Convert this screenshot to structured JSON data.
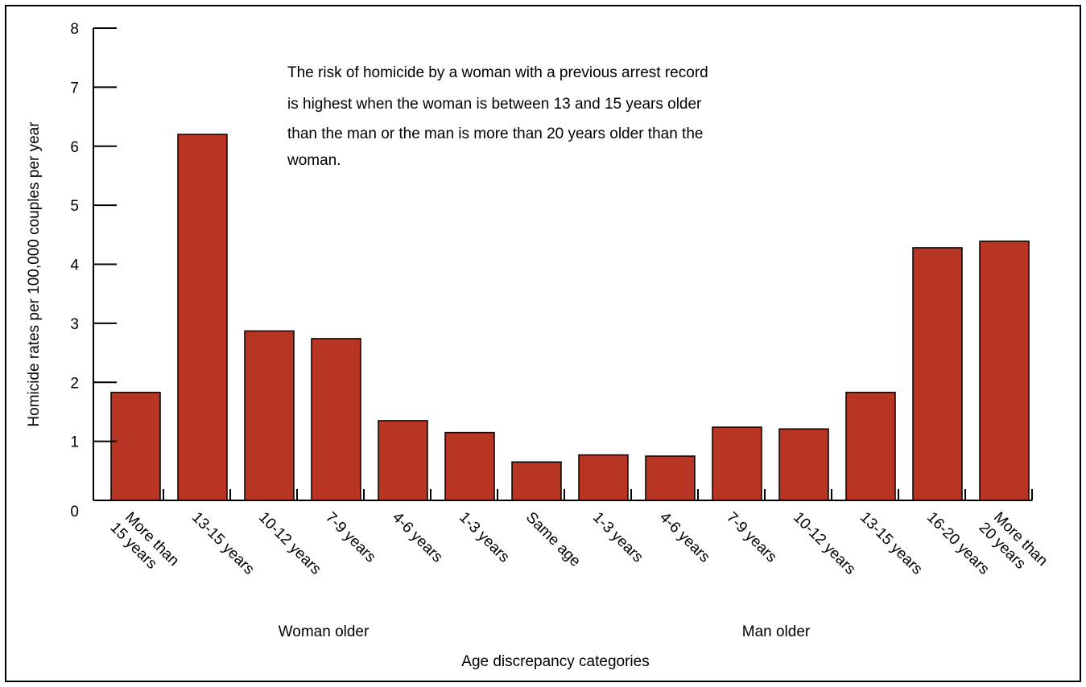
{
  "chart_data": {
    "type": "bar",
    "title": "",
    "annotation": [
      "The risk of homicide by a woman with a previous arrest record",
      "is highest when the woman is between 13 and 15 years older",
      "than the man or the man is more than 20 years older than the",
      "woman."
    ],
    "ylabel": "Homicide rates per 100,000 couples per year",
    "xlabel": "Age discrepancy categories",
    "group_labels": [
      "Woman older",
      "Man older"
    ],
    "ylim": [
      0,
      8
    ],
    "yticks": [
      "0",
      "1",
      "2",
      "3",
      "4",
      "5",
      "6",
      "7",
      "8"
    ],
    "categories": [
      [
        "More than",
        "15 years"
      ],
      [
        "13-15 years"
      ],
      [
        "10-12 years"
      ],
      [
        "7-9 years"
      ],
      [
        "4-6 years"
      ],
      [
        "1-3 years"
      ],
      [
        "Same age"
      ],
      [
        "1-3 years"
      ],
      [
        "4-6 years"
      ],
      [
        "7-9 years"
      ],
      [
        "10-12 years"
      ],
      [
        "13-15 years"
      ],
      [
        "16-20 years"
      ],
      [
        "More than",
        "20 years"
      ]
    ],
    "values": [
      1.83,
      6.2,
      2.87,
      2.74,
      1.35,
      1.15,
      0.65,
      0.77,
      0.75,
      1.24,
      1.21,
      1.83,
      4.28,
      4.39
    ],
    "bar_color": "#b83524",
    "grid": false
  }
}
